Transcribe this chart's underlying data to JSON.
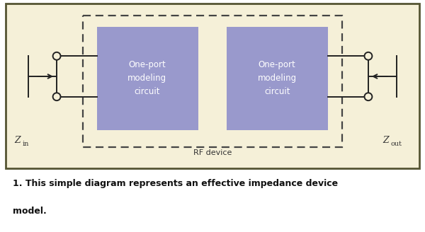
{
  "bg_color": "#f5f0d8",
  "outer_border_color": "#8fba5a",
  "dashed_border_color": "#444444",
  "box_color": "#9999cc",
  "box_text_color": "#ffffff",
  "line_color": "#222222",
  "label_color": "#333333",
  "caption_color": "#111111",
  "title_num": "1. ",
  "title_rest": "This simple diagram represents an effective impedance device model.",
  "box1_label": "One-port\nmodeling\ncircuit",
  "box2_label": "One-port\nmodeling\ncircuit",
  "rf_label": "RF device",
  "zin_label": "Z",
  "zin_sub": "in",
  "zout_label": "Z",
  "zout_sub": "out"
}
